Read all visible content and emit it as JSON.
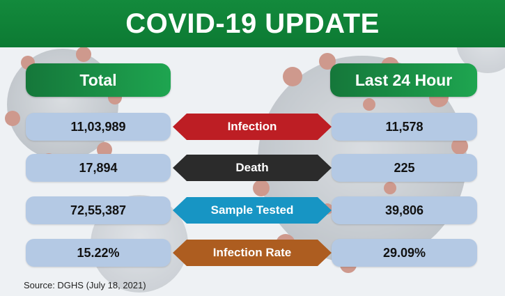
{
  "header": {
    "title": "COVID-19 UPDATE"
  },
  "columns": {
    "total": "Total",
    "last24": "Last 24 Hour"
  },
  "rows": [
    {
      "label": "Infection",
      "total": "11,03,989",
      "last24": "11,578",
      "color": "#bd1e24"
    },
    {
      "label": "Death",
      "total": "17,894",
      "last24": "225",
      "color": "#2b2b2b"
    },
    {
      "label": "Sample Tested",
      "total": "72,55,387",
      "last24": "39,806",
      "color": "#1795c4"
    },
    {
      "label": "Infection Rate",
      "total": "15.22%",
      "last24": "29.09%",
      "color": "#ad5d20"
    }
  ],
  "source": "Source: DGHS (July 18, 2021)",
  "colors": {
    "brand_green": "#138a3c",
    "value_box": "#b4c9e4"
  },
  "icons": [
    "virus-background-image"
  ]
}
